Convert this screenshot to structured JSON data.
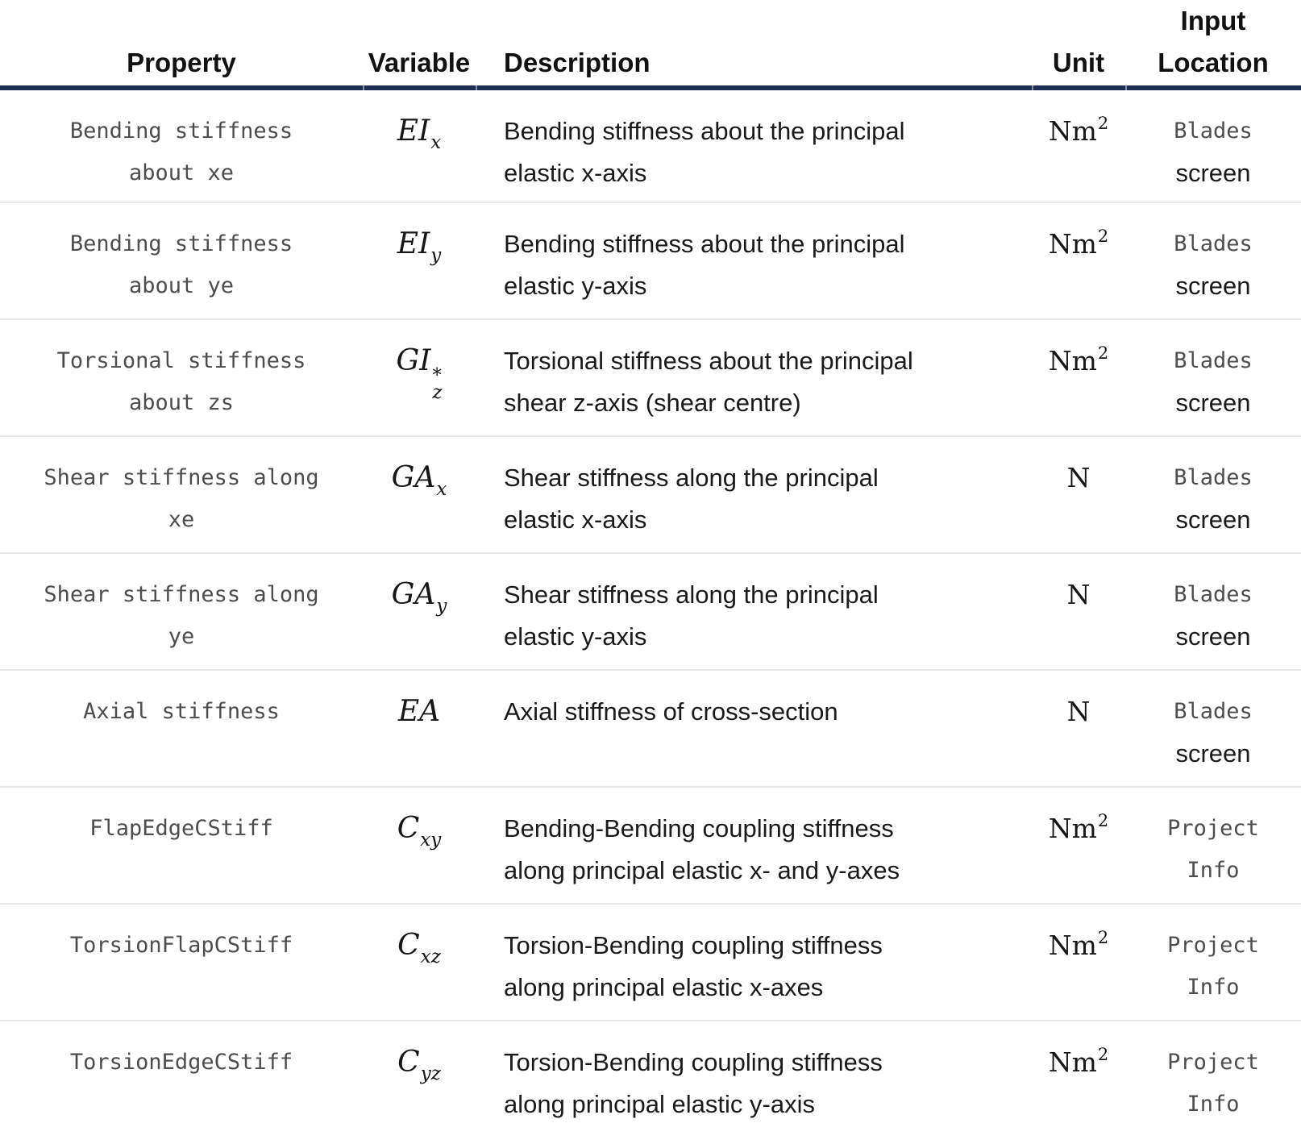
{
  "header": {
    "property": "Property",
    "variable": "Variable",
    "description": "Description",
    "unit": "Unit",
    "input_location": "Input Location"
  },
  "colors": {
    "header_rule": "#1e2f55",
    "row_divider": "#e7e7e7",
    "code_text": "#4d4d4d",
    "body_text": "#1a1a1a"
  },
  "rows": [
    {
      "property_lines": [
        "Bending stiffness",
        "about xe"
      ],
      "variable": {
        "base": "EI",
        "sub": "x",
        "sup": ""
      },
      "description_lines": [
        "Bending stiffness about the principal",
        "elastic x-axis"
      ],
      "unit": {
        "base": "Nm",
        "sup": "2"
      },
      "location_lines": [
        {
          "text": "Blades",
          "code": true
        },
        {
          "text": "screen",
          "code": false
        }
      ]
    },
    {
      "property_lines": [
        "Bending stiffness",
        "about ye"
      ],
      "variable": {
        "base": "EI",
        "sub": "y",
        "sup": ""
      },
      "description_lines": [
        "Bending stiffness about the principal",
        "elastic y-axis"
      ],
      "unit": {
        "base": "Nm",
        "sup": "2"
      },
      "location_lines": [
        {
          "text": "Blades",
          "code": true
        },
        {
          "text": "screen",
          "code": false
        }
      ]
    },
    {
      "property_lines": [
        "Torsional stiffness",
        "about zs"
      ],
      "variable": {
        "base": "GI",
        "sub": "z",
        "sup": "*"
      },
      "description_lines": [
        "Torsional stiffness about the principal",
        "shear z-axis (shear centre)"
      ],
      "unit": {
        "base": "Nm",
        "sup": "2"
      },
      "location_lines": [
        {
          "text": "Blades",
          "code": true
        },
        {
          "text": "screen",
          "code": false
        }
      ]
    },
    {
      "property_lines": [
        "Shear stiffness along",
        "xe"
      ],
      "variable": {
        "base": "GA",
        "sub": "x",
        "sup": ""
      },
      "description_lines": [
        "Shear stiffness along the principal",
        "elastic x-axis"
      ],
      "unit": {
        "base": "N",
        "sup": ""
      },
      "location_lines": [
        {
          "text": "Blades",
          "code": true
        },
        {
          "text": "screen",
          "code": false
        }
      ]
    },
    {
      "property_lines": [
        "Shear stiffness along",
        "ye"
      ],
      "variable": {
        "base": "GA",
        "sub": "y",
        "sup": ""
      },
      "description_lines": [
        "Shear stiffness along the principal",
        "elastic y-axis"
      ],
      "unit": {
        "base": "N",
        "sup": ""
      },
      "location_lines": [
        {
          "text": "Blades",
          "code": true
        },
        {
          "text": "screen",
          "code": false
        }
      ]
    },
    {
      "property_lines": [
        "Axial stiffness"
      ],
      "variable": {
        "base": "EA",
        "sub": "",
        "sup": ""
      },
      "description_lines": [
        "Axial stiffness of cross-section"
      ],
      "unit": {
        "base": "N",
        "sup": ""
      },
      "location_lines": [
        {
          "text": "Blades",
          "code": true
        },
        {
          "text": "screen",
          "code": false
        }
      ]
    },
    {
      "property_lines": [
        "FlapEdgeCStiff"
      ],
      "variable": {
        "base": "C",
        "sub": "xy",
        "sup": ""
      },
      "description_lines": [
        "Bending-Bending coupling stiffness",
        "along principal elastic x- and y-axes"
      ],
      "unit": {
        "base": "Nm",
        "sup": "2"
      },
      "location_lines": [
        {
          "text": "Project",
          "code": true
        },
        {
          "text": "Info",
          "code": true
        }
      ]
    },
    {
      "property_lines": [
        "TorsionFlapCStiff"
      ],
      "variable": {
        "base": "C",
        "sub": "xz",
        "sup": ""
      },
      "description_lines": [
        "Torsion-Bending coupling stiffness",
        "along principal elastic x-axes"
      ],
      "unit": {
        "base": "Nm",
        "sup": "2"
      },
      "location_lines": [
        {
          "text": "Project",
          "code": true
        },
        {
          "text": "Info",
          "code": true
        }
      ]
    },
    {
      "property_lines": [
        "TorsionEdgeCStiff"
      ],
      "variable": {
        "base": "C",
        "sub": "yz",
        "sup": ""
      },
      "description_lines": [
        "Torsion-Bending coupling stiffness",
        "along principal elastic y-axis"
      ],
      "unit": {
        "base": "Nm",
        "sup": "2"
      },
      "location_lines": [
        {
          "text": "Project",
          "code": true
        },
        {
          "text": "Info",
          "code": true
        }
      ]
    }
  ]
}
